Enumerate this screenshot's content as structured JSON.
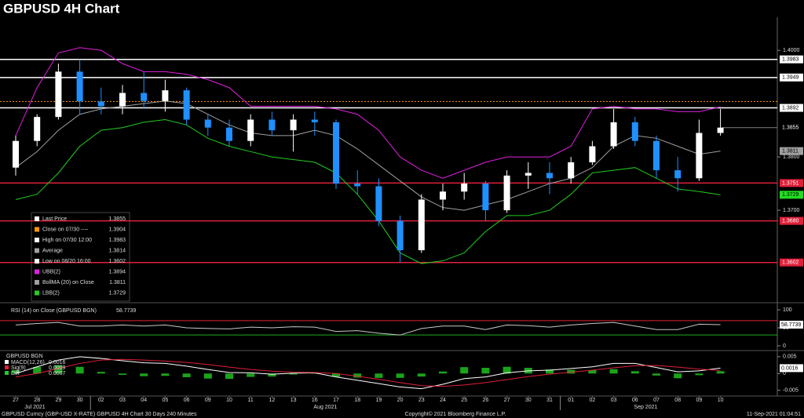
{
  "title": "GBPUSD 4H Chart",
  "footer": {
    "left": "GBPUSD Curncy (GBP-USD X-RATE) GBPUSD 4H Chart 30 Days 240 Minutes",
    "center": "Copyright© 2021 Bloomberg Finance L.P.",
    "right": "11-Sep-2021 01:04:51"
  },
  "chart_data": [
    {
      "type": "candlestick",
      "categories": [
        "27",
        "28",
        "29",
        "30",
        "02",
        "03",
        "04",
        "05",
        "06",
        "09",
        "10",
        "11",
        "12",
        "13",
        "16",
        "17",
        "18",
        "19",
        "20",
        "23",
        "24",
        "25",
        "26",
        "27",
        "30",
        "31",
        "01",
        "02",
        "03",
        "06",
        "07",
        "08",
        "09",
        "10"
      ],
      "months": [
        "Jul 2021",
        "Aug 2021",
        "Sep 2021"
      ],
      "candles": {
        "open": [
          1.378,
          1.383,
          1.3875,
          1.396,
          1.3904,
          1.3895,
          1.392,
          1.3905,
          1.3925,
          1.387,
          1.3855,
          1.383,
          1.387,
          1.385,
          1.387,
          1.3865,
          1.375,
          1.3745,
          1.368,
          1.3625,
          1.372,
          1.3735,
          1.375,
          1.37,
          1.3765,
          1.377,
          1.376,
          1.379,
          1.382,
          1.3865,
          1.383,
          1.3775,
          1.376,
          1.3845
        ],
        "high": [
          1.384,
          1.388,
          1.3975,
          1.3983,
          1.393,
          1.3935,
          1.396,
          1.3945,
          1.393,
          1.388,
          1.387,
          1.388,
          1.3885,
          1.388,
          1.3885,
          1.387,
          1.3775,
          1.376,
          1.369,
          1.373,
          1.375,
          1.377,
          1.3755,
          1.3775,
          1.379,
          1.379,
          1.38,
          1.383,
          1.389,
          1.3875,
          1.384,
          1.38,
          1.387,
          1.389
        ],
        "low": [
          1.3765,
          1.382,
          1.387,
          1.388,
          1.388,
          1.388,
          1.389,
          1.3885,
          1.386,
          1.384,
          1.382,
          1.382,
          1.384,
          1.381,
          1.384,
          1.374,
          1.373,
          1.367,
          1.3602,
          1.362,
          1.37,
          1.372,
          1.368,
          1.3695,
          1.374,
          1.373,
          1.375,
          1.3785,
          1.3815,
          1.382,
          1.376,
          1.3735,
          1.3755,
          1.384
        ],
        "close": [
          1.383,
          1.3875,
          1.396,
          1.3904,
          1.3895,
          1.392,
          1.3905,
          1.3925,
          1.387,
          1.3855,
          1.383,
          1.387,
          1.385,
          1.387,
          1.3865,
          1.375,
          1.3745,
          1.368,
          1.3625,
          1.372,
          1.3735,
          1.375,
          1.37,
          1.3765,
          1.377,
          1.376,
          1.379,
          1.382,
          1.3865,
          1.383,
          1.3775,
          1.376,
          1.3845,
          1.3855
        ],
        "up_color": "#ffffff",
        "down_color": "#1e90ff"
      },
      "series": [
        {
          "name": "UBB(2)",
          "color": "#e020e0",
          "values": [
            1.384,
            1.393,
            1.3995,
            1.4005,
            1.4,
            1.3975,
            1.396,
            1.396,
            1.3955,
            1.3945,
            1.393,
            1.3895,
            1.3895,
            1.3895,
            1.3895,
            1.389,
            1.388,
            1.385,
            1.38,
            1.3775,
            1.376,
            1.3775,
            1.379,
            1.38,
            1.38,
            1.38,
            1.382,
            1.389,
            1.3895,
            1.389,
            1.389,
            1.3885,
            1.3885,
            1.3894
          ]
        },
        {
          "name": "BollMA (20)  on Close",
          "color": "#a0a0a0",
          "values": [
            1.378,
            1.381,
            1.385,
            1.388,
            1.389,
            1.3895,
            1.39,
            1.3905,
            1.39,
            1.388,
            1.386,
            1.3845,
            1.384,
            1.384,
            1.385,
            1.384,
            1.3815,
            1.3785,
            1.3755,
            1.3725,
            1.3705,
            1.37,
            1.371,
            1.372,
            1.3735,
            1.375,
            1.376,
            1.378,
            1.382,
            1.384,
            1.3835,
            1.382,
            1.3805,
            1.3811
          ]
        },
        {
          "name": "LBB(2)",
          "color": "#22cc22",
          "values": [
            1.372,
            1.373,
            1.377,
            1.382,
            1.385,
            1.3855,
            1.3865,
            1.387,
            1.386,
            1.3835,
            1.382,
            1.381,
            1.38,
            1.3795,
            1.379,
            1.377,
            1.373,
            1.368,
            1.362,
            1.36,
            1.3605,
            1.362,
            1.366,
            1.369,
            1.369,
            1.37,
            1.373,
            1.377,
            1.3775,
            1.378,
            1.376,
            1.374,
            1.3735,
            1.3729
          ]
        }
      ],
      "legend": [
        {
          "label": "Last Price",
          "value": 1.3855,
          "color": "#ffffff"
        },
        {
          "label": "Close on 07/30 ----",
          "value": 1.3904,
          "color": "#ff9900"
        },
        {
          "label": "High on 07/30 12:00",
          "value": 1.3983,
          "color": "#ffffff"
        },
        {
          "label": "Average",
          "value": 1.3814,
          "color": "#a0a0a0"
        },
        {
          "label": "Low on 08/20 16:00",
          "value": 1.3602,
          "color": "#ffffff"
        },
        {
          "label": "UBB(2)",
          "value": 1.3894,
          "color": "#e020e0"
        },
        {
          "label": "BollMA (20)  on Close",
          "value": 1.3811,
          "color": "#a0a0a0"
        },
        {
          "label": "LBB(2)",
          "value": 1.3729,
          "color": "#22cc22"
        }
      ],
      "levels": [
        {
          "value": 1.3983,
          "color": "#ffffff",
          "line": "solid"
        },
        {
          "value": 1.3949,
          "color": "#ffffff",
          "line": "solid"
        },
        {
          "value": 1.3904,
          "color": "#ff9900",
          "line": "dotted"
        },
        {
          "value": 1.3892,
          "color": "#ffffff",
          "line": "solid"
        },
        {
          "value": 1.3855,
          "color": "#808080",
          "line": "short"
        },
        {
          "value": 1.3811,
          "color": "#a0a0a0",
          "line": "none"
        },
        {
          "value": 1.3751,
          "color": "#e0203a",
          "line": "solid"
        },
        {
          "value": 1.3729,
          "color": "#22dd22",
          "line": "none"
        },
        {
          "value": {
            "value": 1.368,
            "label": "1.3680"
          },
          "color": "#e0203a",
          "line": "solid"
        },
        {
          "value": 1.3602,
          "color": "#e0203a",
          "line": "solid"
        }
      ],
      "ylim": [
        1.3528,
        1.4062
      ],
      "yticks": [
        {
          "value": 1.37,
          "label": "1.3700"
        },
        {
          "value": 1.38,
          "label": "1.3800"
        },
        {
          "value": 1.4,
          "label": "1.4000"
        }
      ]
    },
    {
      "type": "line",
      "title": "RSI (14) on Close (GBPUSD BGN)",
      "series": [
        {
          "name": "RSI",
          "color": "#c8c8c8",
          "values": [
            58,
            62,
            65,
            55,
            55,
            58,
            55,
            58,
            50,
            48,
            47,
            52,
            50,
            53,
            52,
            40,
            42,
            35,
            30,
            48,
            55,
            55,
            45,
            58,
            56,
            52,
            58,
            62,
            65,
            55,
            45,
            45,
            60,
            58.7739
          ]
        }
      ],
      "levels": [
        {
          "value": 70,
          "color": "#e0203a"
        },
        {
          "value": 30,
          "color": "#22aa22"
        }
      ],
      "ylim": [
        -11,
        111
      ],
      "yticks": [
        0,
        50,
        100
      ]
    },
    {
      "type": "line",
      "title": "GBPUSD BGN",
      "series": [
        {
          "name": "MACD(12,26)",
          "color": "#ffffff",
          "values": [
            0,
            0.002,
            0.004,
            0.005,
            0.0045,
            0.0038,
            0.0032,
            0.003,
            0.0022,
            0.0012,
            0.0003,
            0.0002,
            -0.0002,
            0.0001,
            0.0002,
            -0.001,
            -0.002,
            -0.003,
            -0.004,
            -0.0045,
            -0.0032,
            -0.0015,
            -0.001,
            0.0002,
            0.0008,
            0.001,
            0.0015,
            0.002,
            0.003,
            0.003,
            0.0018,
            0.0005,
            0.0008,
            0.0016
          ],
          "last": 0.0016
        },
        {
          "name": "Sig(9)",
          "color": "#e0203a",
          "values": [
            -0.001,
            0,
            0.0015,
            0.003,
            0.004,
            0.0042,
            0.004,
            0.0037,
            0.0033,
            0.0027,
            0.0019,
            0.0012,
            0.0007,
            0.0004,
            0.0003,
            0,
            -0.0008,
            -0.0017,
            -0.0027,
            -0.0036,
            -0.0038,
            -0.0034,
            -0.0027,
            -0.0018,
            -0.0009,
            -0.0002,
            0.0004,
            0.001,
            0.0017,
            0.0023,
            0.0024,
            0.0019,
            0.0013,
            0.0009
          ],
          "last": 0.0009
        },
        {
          "name": "Diff",
          "color": "#22cc22",
          "kind": "bar",
          "values": [
            0.001,
            0.002,
            0.0025,
            0.002,
            0.0005,
            -0.0004,
            -0.0008,
            -0.0007,
            -0.0011,
            -0.0015,
            -0.0016,
            -0.001,
            -0.0009,
            -0.0003,
            -0.0001,
            -0.001,
            -0.0012,
            -0.0013,
            -0.0013,
            -0.0009,
            0.0006,
            0.0019,
            0.0017,
            0.002,
            0.0017,
            0.0012,
            0.0011,
            0.001,
            0.0013,
            0.0007,
            -0.0006,
            -0.0014,
            -0.0005,
            0.0007
          ],
          "last": 0.0007
        }
      ],
      "ylim": [
        -0.0067,
        0.0066
      ],
      "yticks": [
        -0.005,
        0,
        0.005
      ]
    }
  ]
}
